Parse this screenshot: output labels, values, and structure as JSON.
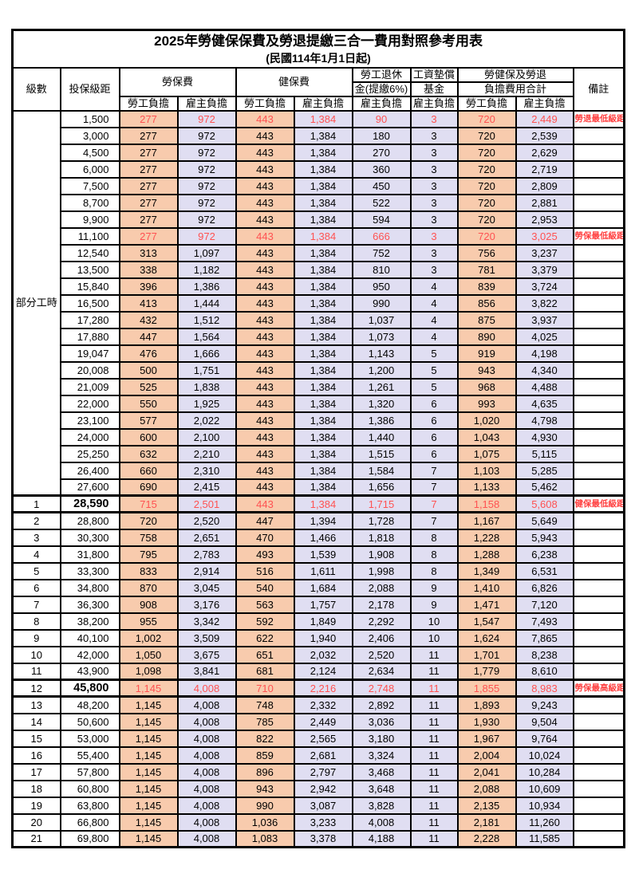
{
  "title": "2025年勞健保保費及勞退提繳三合一費用對照參考用表",
  "subtitle": "(民國114年1月1日起)",
  "header": {
    "level": "級數",
    "bracket": "投保級距",
    "labor_ins": "勞保費",
    "health_ins": "健保費",
    "pension_line1": "勞工退休",
    "pension_line2": "金(提繳6%)",
    "wage_fund_line1": "工資墊償",
    "wage_fund_line2": "基金",
    "total_line1": "勞健保及勞退",
    "total_line2": "負擔費用合計",
    "remark": "備註",
    "employee": "勞工負擔",
    "employer": "雇主負擔"
  },
  "part_time_label": "部分工時",
  "part_time_span": 23,
  "colors": {
    "employee_bg": "#F8CBAD",
    "employer_bg": "#E0DEF2",
    "employee_header_bg": "#F6BE8F",
    "employer_header_bg": "#DAD7EC",
    "highlight_red": "#FF5252",
    "remark_red": "#FF4040"
  },
  "rows": [
    {
      "amt": "1,500",
      "fees": [
        "277",
        "972",
        "443",
        "1,384",
        "90",
        "3",
        "720",
        "2,449"
      ],
      "note": "勞退最低級距",
      "red": true
    },
    {
      "amt": "3,000",
      "fees": [
        "277",
        "972",
        "443",
        "1,384",
        "180",
        "3",
        "720",
        "2,539"
      ],
      "note": ""
    },
    {
      "amt": "4,500",
      "fees": [
        "277",
        "972",
        "443",
        "1,384",
        "270",
        "3",
        "720",
        "2,629"
      ],
      "note": ""
    },
    {
      "amt": "6,000",
      "fees": [
        "277",
        "972",
        "443",
        "1,384",
        "360",
        "3",
        "720",
        "2,719"
      ],
      "note": ""
    },
    {
      "amt": "7,500",
      "fees": [
        "277",
        "972",
        "443",
        "1,384",
        "450",
        "3",
        "720",
        "2,809"
      ],
      "note": ""
    },
    {
      "amt": "8,700",
      "fees": [
        "277",
        "972",
        "443",
        "1,384",
        "522",
        "3",
        "720",
        "2,881"
      ],
      "note": ""
    },
    {
      "amt": "9,900",
      "fees": [
        "277",
        "972",
        "443",
        "1,384",
        "594",
        "3",
        "720",
        "2,953"
      ],
      "note": ""
    },
    {
      "amt": "11,100",
      "fees": [
        "277",
        "972",
        "443",
        "1,384",
        "666",
        "3",
        "720",
        "3,025"
      ],
      "note": "勞保最低級距",
      "red": true
    },
    {
      "amt": "12,540",
      "fees": [
        "313",
        "1,097",
        "443",
        "1,384",
        "752",
        "3",
        "756",
        "3,237"
      ],
      "note": ""
    },
    {
      "amt": "13,500",
      "fees": [
        "338",
        "1,182",
        "443",
        "1,384",
        "810",
        "3",
        "781",
        "3,379"
      ],
      "note": ""
    },
    {
      "amt": "15,840",
      "fees": [
        "396",
        "1,386",
        "443",
        "1,384",
        "950",
        "4",
        "839",
        "3,724"
      ],
      "note": ""
    },
    {
      "amt": "16,500",
      "fees": [
        "413",
        "1,444",
        "443",
        "1,384",
        "990",
        "4",
        "856",
        "3,822"
      ],
      "note": ""
    },
    {
      "amt": "17,280",
      "fees": [
        "432",
        "1,512",
        "443",
        "1,384",
        "1,037",
        "4",
        "875",
        "3,937"
      ],
      "note": ""
    },
    {
      "amt": "17,880",
      "fees": [
        "447",
        "1,564",
        "443",
        "1,384",
        "1,073",
        "4",
        "890",
        "4,025"
      ],
      "note": ""
    },
    {
      "amt": "19,047",
      "fees": [
        "476",
        "1,666",
        "443",
        "1,384",
        "1,143",
        "5",
        "919",
        "4,198"
      ],
      "note": ""
    },
    {
      "amt": "20,008",
      "fees": [
        "500",
        "1,751",
        "443",
        "1,384",
        "1,200",
        "5",
        "943",
        "4,340"
      ],
      "note": ""
    },
    {
      "amt": "21,009",
      "fees": [
        "525",
        "1,838",
        "443",
        "1,384",
        "1,261",
        "5",
        "968",
        "4,488"
      ],
      "note": ""
    },
    {
      "amt": "22,000",
      "fees": [
        "550",
        "1,925",
        "443",
        "1,384",
        "1,320",
        "6",
        "993",
        "4,635"
      ],
      "note": ""
    },
    {
      "amt": "23,100",
      "fees": [
        "577",
        "2,022",
        "443",
        "1,384",
        "1,386",
        "6",
        "1,020",
        "4,798"
      ],
      "note": ""
    },
    {
      "amt": "24,000",
      "fees": [
        "600",
        "2,100",
        "443",
        "1,384",
        "1,440",
        "6",
        "1,043",
        "4,930"
      ],
      "note": ""
    },
    {
      "amt": "25,250",
      "fees": [
        "632",
        "2,210",
        "443",
        "1,384",
        "1,515",
        "6",
        "1,075",
        "5,115"
      ],
      "note": ""
    },
    {
      "amt": "26,400",
      "fees": [
        "660",
        "2,310",
        "443",
        "1,384",
        "1,584",
        "7",
        "1,103",
        "5,285"
      ],
      "note": ""
    },
    {
      "amt": "27,600",
      "fees": [
        "690",
        "2,415",
        "443",
        "1,384",
        "1,656",
        "7",
        "1,133",
        "5,462"
      ],
      "note": ""
    },
    {
      "lv": "1",
      "amt": "28,590",
      "fees": [
        "715",
        "2,501",
        "443",
        "1,384",
        "1,715",
        "7",
        "1,158",
        "5,608"
      ],
      "note": "健保最低級距",
      "red": true,
      "key": true
    },
    {
      "lv": "2",
      "amt": "28,800",
      "fees": [
        "720",
        "2,520",
        "447",
        "1,394",
        "1,728",
        "7",
        "1,167",
        "5,649"
      ],
      "note": ""
    },
    {
      "lv": "3",
      "amt": "30,300",
      "fees": [
        "758",
        "2,651",
        "470",
        "1,466",
        "1,818",
        "8",
        "1,228",
        "5,943"
      ],
      "note": ""
    },
    {
      "lv": "4",
      "amt": "31,800",
      "fees": [
        "795",
        "2,783",
        "493",
        "1,539",
        "1,908",
        "8",
        "1,288",
        "6,238"
      ],
      "note": ""
    },
    {
      "lv": "5",
      "amt": "33,300",
      "fees": [
        "833",
        "2,914",
        "516",
        "1,611",
        "1,998",
        "8",
        "1,349",
        "6,531"
      ],
      "note": ""
    },
    {
      "lv": "6",
      "amt": "34,800",
      "fees": [
        "870",
        "3,045",
        "540",
        "1,684",
        "2,088",
        "9",
        "1,410",
        "6,826"
      ],
      "note": ""
    },
    {
      "lv": "7",
      "amt": "36,300",
      "fees": [
        "908",
        "3,176",
        "563",
        "1,757",
        "2,178",
        "9",
        "1,471",
        "7,120"
      ],
      "note": ""
    },
    {
      "lv": "8",
      "amt": "38,200",
      "fees": [
        "955",
        "3,342",
        "592",
        "1,849",
        "2,292",
        "10",
        "1,547",
        "7,493"
      ],
      "note": ""
    },
    {
      "lv": "9",
      "amt": "40,100",
      "fees": [
        "1,002",
        "3,509",
        "622",
        "1,940",
        "2,406",
        "10",
        "1,624",
        "7,865"
      ],
      "note": ""
    },
    {
      "lv": "10",
      "amt": "42,000",
      "fees": [
        "1,050",
        "3,675",
        "651",
        "2,032",
        "2,520",
        "11",
        "1,701",
        "8,238"
      ],
      "note": ""
    },
    {
      "lv": "11",
      "amt": "43,900",
      "fees": [
        "1,098",
        "3,841",
        "681",
        "2,124",
        "2,634",
        "11",
        "1,779",
        "8,610"
      ],
      "note": ""
    },
    {
      "lv": "12",
      "amt": "45,800",
      "fees": [
        "1,145",
        "4,008",
        "710",
        "2,216",
        "2,748",
        "11",
        "1,855",
        "8,983"
      ],
      "note": "勞保最高級距",
      "red": true,
      "key": true
    },
    {
      "lv": "13",
      "amt": "48,200",
      "fees": [
        "1,145",
        "4,008",
        "748",
        "2,332",
        "2,892",
        "11",
        "1,893",
        "9,243"
      ],
      "note": ""
    },
    {
      "lv": "14",
      "amt": "50,600",
      "fees": [
        "1,145",
        "4,008",
        "785",
        "2,449",
        "3,036",
        "11",
        "1,930",
        "9,504"
      ],
      "note": ""
    },
    {
      "lv": "15",
      "amt": "53,000",
      "fees": [
        "1,145",
        "4,008",
        "822",
        "2,565",
        "3,180",
        "11",
        "1,967",
        "9,764"
      ],
      "note": ""
    },
    {
      "lv": "16",
      "amt": "55,400",
      "fees": [
        "1,145",
        "4,008",
        "859",
        "2,681",
        "3,324",
        "11",
        "2,004",
        "10,024"
      ],
      "note": ""
    },
    {
      "lv": "17",
      "amt": "57,800",
      "fees": [
        "1,145",
        "4,008",
        "896",
        "2,797",
        "3,468",
        "11",
        "2,041",
        "10,284"
      ],
      "note": ""
    },
    {
      "lv": "18",
      "amt": "60,800",
      "fees": [
        "1,145",
        "4,008",
        "943",
        "2,942",
        "3,648",
        "11",
        "2,088",
        "10,609"
      ],
      "note": ""
    },
    {
      "lv": "19",
      "amt": "63,800",
      "fees": [
        "1,145",
        "4,008",
        "990",
        "3,087",
        "3,828",
        "11",
        "2,135",
        "10,934"
      ],
      "note": ""
    },
    {
      "lv": "20",
      "amt": "66,800",
      "fees": [
        "1,145",
        "4,008",
        "1,036",
        "3,233",
        "4,008",
        "11",
        "2,181",
        "11,260"
      ],
      "note": ""
    },
    {
      "lv": "21",
      "amt": "69,800",
      "fees": [
        "1,145",
        "4,008",
        "1,083",
        "3,378",
        "4,188",
        "11",
        "2,228",
        "11,585"
      ],
      "note": ""
    }
  ]
}
